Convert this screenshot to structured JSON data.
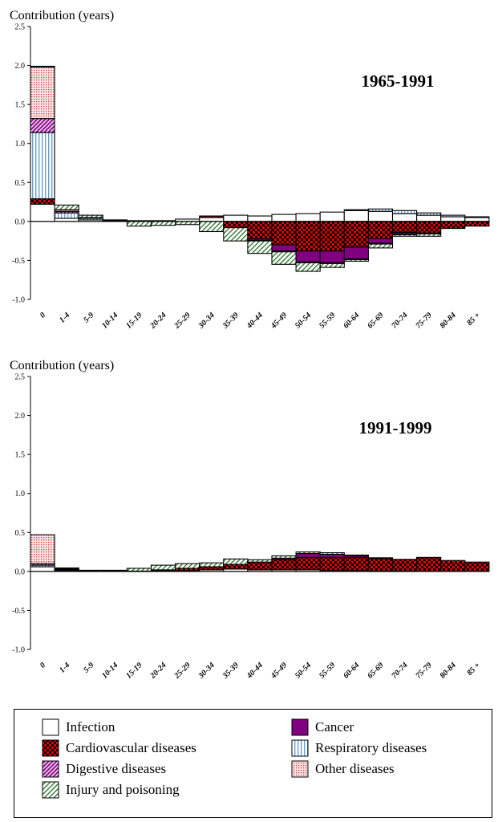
{
  "colors": {
    "infection": "#ffffff",
    "cancer": "#800080",
    "cardiovascular": "#e00000",
    "respiratory": "#a8c8e8",
    "digestive": "#c060c0",
    "other": "#f2b4b4",
    "injury": "#4f8f4f"
  },
  "legend": [
    {
      "key": "infection",
      "label": "Infection"
    },
    {
      "key": "cancer",
      "label": "Cancer"
    },
    {
      "key": "cardiovascular",
      "label": "Cardiovascular diseases"
    },
    {
      "key": "respiratory",
      "label": "Respiratory diseases"
    },
    {
      "key": "digestive",
      "label": "Digestive diseases"
    },
    {
      "key": "other",
      "label": "Other diseases"
    },
    {
      "key": "injury",
      "label": "Injury and poisoning"
    }
  ],
  "chart_data": [
    {
      "type": "bar",
      "stacked": true,
      "title": "1965-1991",
      "ylabel": "Contribution (years)",
      "ylim": [
        -1.0,
        2.5
      ],
      "yticks": [
        "2.5",
        "2.0",
        "1.5",
        "1.0",
        "0.5",
        "0.0",
        "-0.5",
        "-1.0"
      ],
      "categories": [
        "0",
        "1-4",
        "5-9",
        "10-14",
        "15-19",
        "20-24",
        "25-29",
        "30-34",
        "35-39",
        "40-44",
        "45-49",
        "50-54",
        "55-59",
        "60-64",
        "65-69",
        "70-74",
        "75-79",
        "80-84",
        "85 +"
      ],
      "series": [
        {
          "key": "infection",
          "name": "Infection",
          "values": [
            0.22,
            0.04,
            0.02,
            0.01,
            0.0,
            0.0,
            0.03,
            0.05,
            0.08,
            0.07,
            0.09,
            0.1,
            0.12,
            0.14,
            0.13,
            0.1,
            0.08,
            0.06,
            0.05
          ]
        },
        {
          "key": "cancer",
          "name": "Cancer",
          "values": [
            0.0,
            0.0,
            0.0,
            0.0,
            0.0,
            0.0,
            0.0,
            0.0,
            0.0,
            -0.02,
            -0.08,
            -0.14,
            -0.15,
            -0.15,
            -0.06,
            -0.02,
            -0.01,
            0.0,
            0.0
          ]
        },
        {
          "key": "cardiovascular",
          "name": "Cardiovascular diseases",
          "values": [
            0.07,
            0.0,
            0.0,
            0.0,
            0.01,
            0.01,
            0.0,
            0.02,
            -0.08,
            -0.22,
            -0.3,
            -0.38,
            -0.38,
            -0.33,
            -0.22,
            -0.14,
            -0.15,
            -0.09,
            -0.06
          ]
        },
        {
          "key": "respiratory",
          "name": "Respiratory diseases",
          "values": [
            0.85,
            0.07,
            0.02,
            0.0,
            0.0,
            0.0,
            0.0,
            0.0,
            0.0,
            0.0,
            0.0,
            0.0,
            0.0,
            0.01,
            0.03,
            0.04,
            0.03,
            0.02,
            0.01
          ]
        },
        {
          "key": "digestive",
          "name": "Digestive diseases",
          "values": [
            0.18,
            0.02,
            0.0,
            0.0,
            0.0,
            0.0,
            0.0,
            0.0,
            0.0,
            -0.01,
            -0.01,
            -0.01,
            -0.01,
            -0.01,
            -0.01,
            -0.01,
            0.0,
            0.0,
            0.0
          ]
        },
        {
          "key": "other",
          "name": "Other diseases",
          "values": [
            0.66,
            0.02,
            0.01,
            0.0,
            0.0,
            0.0,
            0.0,
            0.0,
            0.0,
            0.0,
            0.0,
            0.0,
            0.0,
            0.0,
            0.0,
            0.0,
            0.0,
            0.0,
            0.0
          ]
        },
        {
          "key": "injury",
          "name": "Injury and poisoning",
          "values": [
            0.01,
            0.06,
            0.03,
            0.01,
            -0.06,
            -0.05,
            -0.04,
            -0.13,
            -0.17,
            -0.16,
            -0.16,
            -0.11,
            -0.05,
            -0.02,
            -0.05,
            -0.02,
            -0.03,
            0.0,
            0.0
          ]
        }
      ]
    },
    {
      "type": "bar",
      "stacked": true,
      "title": "1991-1999",
      "ylabel": "Contribution (years)",
      "ylim": [
        -1.0,
        2.5
      ],
      "yticks": [
        "2.5",
        "2.0",
        "1.5",
        "1.0",
        "0.5",
        "0.0",
        "-0.5",
        "-1.0"
      ],
      "categories": [
        "0",
        "1-4",
        "5-9",
        "10-14",
        "15-19",
        "20-24",
        "25-29",
        "30-34",
        "35-39",
        "40-44",
        "45-49",
        "50-54",
        "55-59",
        "60-64",
        "65-69",
        "70-74",
        "75-79",
        "80-84",
        "85 +"
      ],
      "series": [
        {
          "key": "infection",
          "name": "Infection",
          "values": [
            0.06,
            0.01,
            0.005,
            0.005,
            0.005,
            0.01,
            0.01,
            0.02,
            0.03,
            0.02,
            0.02,
            0.02,
            0.01,
            0.01,
            0.005,
            0.005,
            0.0,
            0.0,
            0.0
          ]
        },
        {
          "key": "cancer",
          "name": "Cancer",
          "values": [
            0.0,
            0.0,
            0.0,
            0.0,
            0.0,
            0.0,
            0.0,
            0.0,
            0.0,
            0.0,
            0.02,
            0.05,
            0.04,
            0.02,
            0.01,
            0.0,
            0.0,
            0.0,
            0.0
          ]
        },
        {
          "key": "cardiovascular",
          "name": "Cardiovascular diseases",
          "values": [
            0.0,
            0.0,
            0.0,
            0.0,
            0.0,
            0.01,
            0.03,
            0.04,
            0.06,
            0.1,
            0.13,
            0.16,
            0.17,
            0.17,
            0.16,
            0.15,
            0.18,
            0.14,
            0.12
          ]
        },
        {
          "key": "respiratory",
          "name": "Respiratory diseases",
          "values": [
            0.02,
            0.01,
            0.0,
            0.0,
            0.0,
            0.0,
            0.0,
            0.0,
            0.0,
            0.0,
            0.0,
            0.0,
            0.0,
            0.0,
            0.0,
            0.0,
            0.0,
            0.0,
            0.0
          ]
        },
        {
          "key": "digestive",
          "name": "Digestive diseases",
          "values": [
            0.02,
            0.005,
            0.0,
            0.0,
            0.0,
            0.0,
            0.0,
            0.0,
            0.0,
            0.0,
            0.0,
            0.0,
            0.0,
            0.0,
            0.0,
            0.0,
            0.0,
            0.0,
            0.0
          ]
        },
        {
          "key": "other",
          "name": "Other diseases",
          "values": [
            0.37,
            0.01,
            0.005,
            0.005,
            0.0,
            0.0,
            0.0,
            0.0,
            0.0,
            0.0,
            0.0,
            0.0,
            0.0,
            0.0,
            0.0,
            0.0,
            0.0,
            0.0,
            0.0
          ]
        },
        {
          "key": "injury",
          "name": "Injury and poisoning",
          "values": [
            0.0,
            0.01,
            0.005,
            0.005,
            0.035,
            0.06,
            0.06,
            0.05,
            0.07,
            0.03,
            0.03,
            0.02,
            0.02,
            0.01,
            0.0,
            0.0,
            0.0,
            0.0,
            0.0
          ]
        }
      ]
    }
  ]
}
